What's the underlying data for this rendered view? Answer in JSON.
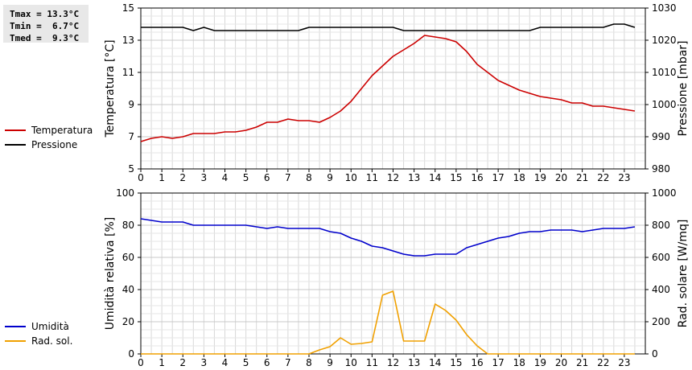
{
  "stats": {
    "tmax": "Tmax = 13.3°C",
    "tmin": "Tmin =  6.7°C",
    "tmed": "Tmed =  9.3°C"
  },
  "colors": {
    "temperatura": "#cc0000",
    "pressione": "#000000",
    "umidita": "#0000cc",
    "radiazione": "#f0a000"
  },
  "chart_data": [
    {
      "type": "line",
      "x": [
        0,
        0.5,
        1,
        1.5,
        2,
        2.5,
        3,
        3.5,
        4,
        4.5,
        5,
        5.5,
        6,
        6.5,
        7,
        7.5,
        8,
        8.5,
        9,
        9.5,
        10,
        10.5,
        11,
        11.5,
        12,
        12.5,
        13,
        13.5,
        14,
        14.5,
        15,
        15.5,
        16,
        16.5,
        17,
        17.5,
        18,
        18.5,
        19,
        19.5,
        20,
        20.5,
        21,
        21.5,
        22,
        22.5,
        23,
        23.5
      ],
      "xlabel": "",
      "xticks": [
        "0",
        "1",
        "2",
        "3",
        "4",
        "5",
        "6",
        "7",
        "8",
        "9",
        "10",
        "11",
        "12",
        "13",
        "14",
        "15",
        "16",
        "17",
        "18",
        "19",
        "20",
        "21",
        "22",
        "23"
      ],
      "xlim": [
        0,
        24
      ],
      "ylabel": "Temperatura [°C]",
      "ylim": [
        5,
        15
      ],
      "yticks": [
        "5",
        "7",
        "9",
        "11",
        "13",
        "15"
      ],
      "y2label": "Pressione [mbar]",
      "y2lim": [
        980,
        1030
      ],
      "y2ticks": [
        "980",
        "990",
        "1000",
        "1010",
        "1020",
        "1030"
      ],
      "grid": true,
      "series": [
        {
          "name": "Temperatura",
          "axis": "left",
          "values": [
            6.7,
            6.9,
            7.0,
            6.9,
            7.0,
            7.2,
            7.2,
            7.2,
            7.3,
            7.3,
            7.4,
            7.6,
            7.9,
            7.9,
            8.1,
            8.0,
            8.0,
            7.9,
            8.2,
            8.6,
            9.2,
            10.0,
            10.8,
            11.4,
            12.0,
            12.4,
            12.8,
            13.3,
            13.2,
            13.1,
            12.9,
            12.3,
            11.5,
            11.0,
            10.5,
            10.2,
            9.9,
            9.7,
            9.5,
            9.4,
            9.3,
            9.1,
            9.1,
            8.9,
            8.9,
            8.8,
            8.7,
            8.6
          ]
        },
        {
          "name": "Pressione",
          "axis": "right",
          "values": [
            1024,
            1024,
            1024,
            1024,
            1024,
            1023,
            1024,
            1023,
            1023,
            1023,
            1023,
            1023,
            1023,
            1023,
            1023,
            1023,
            1024,
            1024,
            1024,
            1024,
            1024,
            1024,
            1024,
            1024,
            1024,
            1023,
            1023,
            1023,
            1023,
            1023,
            1023,
            1023,
            1023,
            1023,
            1023,
            1023,
            1023,
            1023,
            1024,
            1024,
            1024,
            1024,
            1024,
            1024,
            1024,
            1025,
            1025,
            1024
          ]
        }
      ]
    },
    {
      "type": "line",
      "x": [
        0,
        0.5,
        1,
        1.5,
        2,
        2.5,
        3,
        3.5,
        4,
        4.5,
        5,
        5.5,
        6,
        6.5,
        7,
        7.5,
        8,
        8.5,
        9,
        9.5,
        10,
        10.5,
        11,
        11.5,
        12,
        12.5,
        13,
        13.5,
        14,
        14.5,
        15,
        15.5,
        16,
        16.5,
        17,
        17.5,
        18,
        18.5,
        19,
        19.5,
        20,
        20.5,
        21,
        21.5,
        22,
        22.5,
        23,
        23.5
      ],
      "xlabel": "",
      "xticks": [
        "0",
        "1",
        "2",
        "3",
        "4",
        "5",
        "6",
        "7",
        "8",
        "9",
        "10",
        "11",
        "12",
        "13",
        "14",
        "15",
        "16",
        "17",
        "18",
        "19",
        "20",
        "21",
        "22",
        "23"
      ],
      "xlim": [
        0,
        24
      ],
      "ylabel": "Umidità relativa [%]",
      "ylim": [
        0,
        100
      ],
      "yticks": [
        "0",
        "20",
        "40",
        "60",
        "80",
        "100"
      ],
      "y2label": "Rad. solare [W/mq]",
      "y2lim": [
        0,
        1000
      ],
      "y2ticks": [
        "0",
        "200",
        "400",
        "600",
        "800",
        "1000"
      ],
      "grid": true,
      "series": [
        {
          "name": "Umidità",
          "axis": "left",
          "values": [
            84,
            83,
            82,
            82,
            82,
            80,
            80,
            80,
            80,
            80,
            80,
            79,
            78,
            79,
            78,
            78,
            78,
            78,
            76,
            75,
            72,
            70,
            67,
            66,
            64,
            62,
            61,
            61,
            62,
            62,
            62,
            66,
            68,
            70,
            72,
            73,
            75,
            76,
            76,
            77,
            77,
            77,
            76,
            77,
            78,
            78,
            78,
            79
          ]
        },
        {
          "name": "Rad. sol.",
          "axis": "right",
          "values": [
            0,
            0,
            0,
            0,
            0,
            0,
            0,
            0,
            0,
            0,
            0,
            0,
            0,
            0,
            0,
            0,
            0,
            25,
            45,
            100,
            60,
            65,
            75,
            365,
            390,
            80,
            80,
            80,
            310,
            270,
            210,
            120,
            50,
            0,
            0,
            0,
            0,
            0,
            0,
            0,
            0,
            0,
            0,
            0,
            0,
            0,
            0,
            0
          ]
        }
      ]
    }
  ]
}
